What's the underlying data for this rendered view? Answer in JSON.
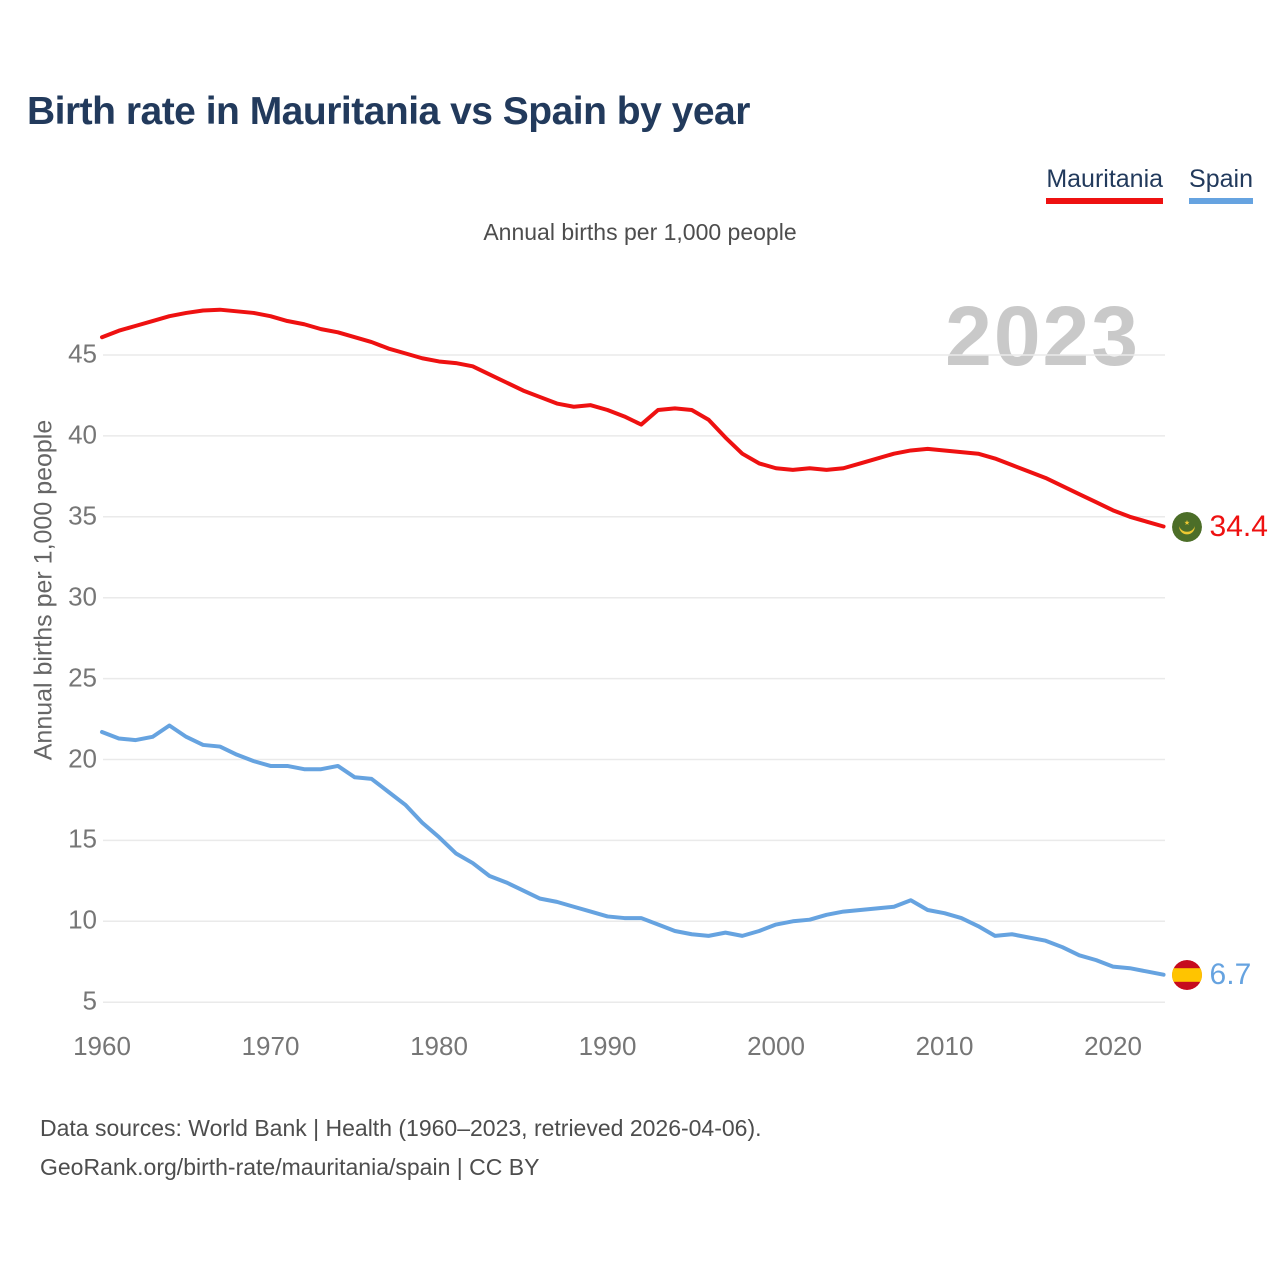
{
  "header": {
    "title": "Birth rate in Mauritania vs Spain by year"
  },
  "legend": {
    "items": [
      {
        "label": "Mauritania",
        "color": "#ee1111"
      },
      {
        "label": "Spain",
        "color": "#66a3e0"
      }
    ]
  },
  "footer": {
    "line1": "Data sources: World Bank | Health (1960–2023, retrieved 2026-04-06).",
    "line2": "GeoRank.org/birth-rate/mauritania/spain | CC BY"
  },
  "chart_data": {
    "type": "line",
    "title": "Birth rate in Mauritania vs Spain by year",
    "subtitle": "Annual births per 1,000 people",
    "ylabel": "Annual births per 1,000 people",
    "xlabel": "",
    "watermark": "2023",
    "grid": true,
    "legend_position": "top-right",
    "xlim": [
      1960,
      2023
    ],
    "ylim": [
      3.5,
      48.5
    ],
    "yticks": [
      5,
      10,
      15,
      20,
      25,
      30,
      35,
      40,
      45
    ],
    "xticks": [
      1960,
      1970,
      1980,
      1990,
      2000,
      2010,
      2020
    ],
    "x": [
      1960,
      1961,
      1962,
      1963,
      1964,
      1965,
      1966,
      1967,
      1968,
      1969,
      1970,
      1971,
      1972,
      1973,
      1974,
      1975,
      1976,
      1977,
      1978,
      1979,
      1980,
      1981,
      1982,
      1983,
      1984,
      1985,
      1986,
      1987,
      1988,
      1989,
      1990,
      1991,
      1992,
      1993,
      1994,
      1995,
      1996,
      1997,
      1998,
      1999,
      2000,
      2001,
      2002,
      2003,
      2004,
      2005,
      2006,
      2007,
      2008,
      2009,
      2010,
      2011,
      2012,
      2013,
      2014,
      2015,
      2016,
      2017,
      2018,
      2019,
      2020,
      2021,
      2022,
      2023
    ],
    "series": [
      {
        "name": "Mauritania",
        "color": "#ee1111",
        "end_label": "34.4",
        "flag": "mauritania",
        "values": [
          46.1,
          46.5,
          46.8,
          47.1,
          47.4,
          47.6,
          47.75,
          47.8,
          47.7,
          47.6,
          47.4,
          47.1,
          46.9,
          46.6,
          46.4,
          46.1,
          45.8,
          45.4,
          45.1,
          44.8,
          44.6,
          44.5,
          44.3,
          43.8,
          43.3,
          42.8,
          42.4,
          42.0,
          41.8,
          41.9,
          41.6,
          41.2,
          40.7,
          41.6,
          41.7,
          41.6,
          41.0,
          39.9,
          38.9,
          38.3,
          38.0,
          37.9,
          38.0,
          37.9,
          38.0,
          38.3,
          38.6,
          38.9,
          39.1,
          39.2,
          39.1,
          39.0,
          38.9,
          38.6,
          38.2,
          37.8,
          37.4,
          36.9,
          36.4,
          35.9,
          35.4,
          35.0,
          34.7,
          34.4
        ]
      },
      {
        "name": "Spain",
        "color": "#66a3e0",
        "end_label": "6.7",
        "flag": "spain",
        "values": [
          21.7,
          21.3,
          21.2,
          21.4,
          22.1,
          21.4,
          20.9,
          20.8,
          20.3,
          19.9,
          19.6,
          19.6,
          19.4,
          19.4,
          19.6,
          18.9,
          18.8,
          18.0,
          17.2,
          16.1,
          15.2,
          14.2,
          13.6,
          12.8,
          12.4,
          11.9,
          11.4,
          11.2,
          10.9,
          10.6,
          10.3,
          10.2,
          10.2,
          9.8,
          9.4,
          9.2,
          9.1,
          9.3,
          9.1,
          9.4,
          9.8,
          10.0,
          10.1,
          10.4,
          10.6,
          10.7,
          10.8,
          10.9,
          11.3,
          10.7,
          10.5,
          10.2,
          9.7,
          9.1,
          9.2,
          9.0,
          8.8,
          8.4,
          7.9,
          7.6,
          7.2,
          7.1,
          6.9,
          6.7
        ]
      }
    ]
  }
}
